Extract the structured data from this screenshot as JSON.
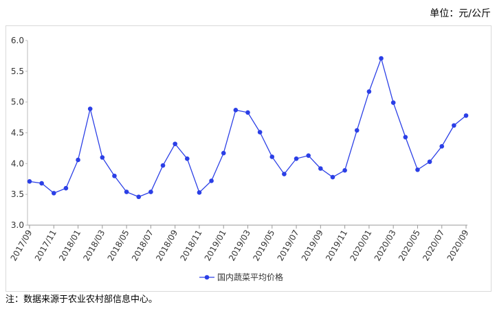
{
  "chart_data": {
    "type": "line",
    "unit_label": "单位：元/公斤",
    "note": "注：数据来源于农业农村部信息中心。",
    "categories": [
      "2017/09",
      null,
      "2017/11",
      null,
      "2018/01",
      null,
      "2018/03",
      null,
      "2018/05",
      null,
      "2018/07",
      null,
      "2018/09",
      null,
      "2018/11",
      null,
      "2019/01",
      null,
      "2019/03",
      null,
      "2019/05",
      null,
      "2019/07",
      null,
      "2019/09",
      null,
      "2019/11",
      null,
      "2020/01",
      null,
      "2020/03",
      null,
      "2020/05",
      null,
      "2020/07",
      null,
      "2020/09"
    ],
    "series": [
      {
        "name": "国内蔬菜平均价格",
        "color": "#2b3fe6",
        "values": [
          3.71,
          3.68,
          3.52,
          3.6,
          4.06,
          4.89,
          4.1,
          3.8,
          3.54,
          3.46,
          3.54,
          3.97,
          4.32,
          4.08,
          3.53,
          3.72,
          4.17,
          4.87,
          4.83,
          4.51,
          4.11,
          3.83,
          4.08,
          4.13,
          3.92,
          3.78,
          3.89,
          4.54,
          5.17,
          5.71,
          4.99,
          4.43,
          3.9,
          4.03,
          4.28,
          4.62,
          4.78
        ]
      }
    ],
    "ylim": [
      3,
      6
    ],
    "yticks": [
      {
        "value": 3,
        "label": "3.0"
      },
      3.5,
      {
        "value": 4,
        "label": "4.0"
      },
      4.5,
      {
        "value": 5,
        "label": "5.0"
      },
      5.5,
      {
        "value": 6,
        "label": "6.0"
      }
    ],
    "grid": false,
    "legend": "bottom"
  }
}
